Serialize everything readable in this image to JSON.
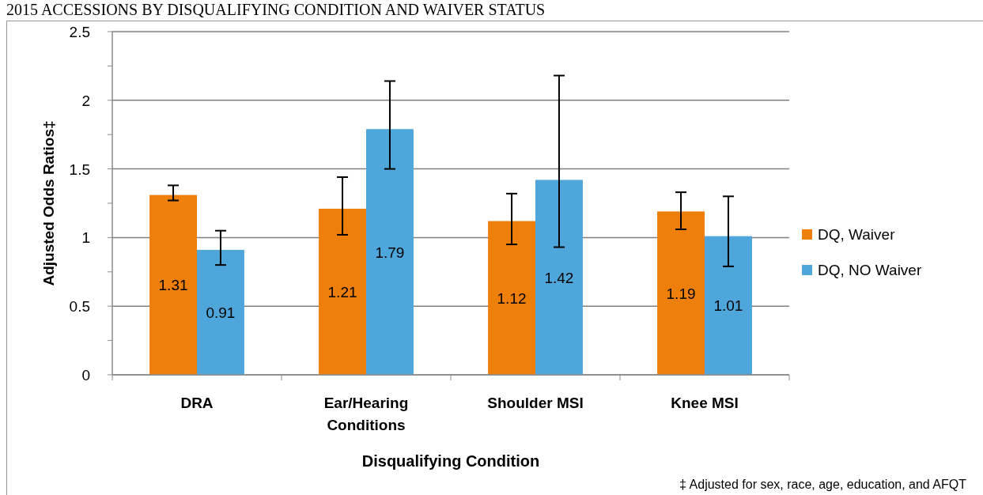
{
  "chart_data": {
    "type": "bar",
    "title": "2015 ACCESSIONS BY DISQUALIFYING CONDITION AND WAIVER STATUS",
    "xlabel": "Disqualifying Condition",
    "ylabel": "Adjusted Odds Ratios‡",
    "categories": [
      "DRA",
      "Ear/Hearing Conditions",
      "Shoulder MSI",
      "Knee MSI"
    ],
    "series": [
      {
        "name": "DQ, Waiver",
        "color": "#ee7f0b",
        "values": [
          1.31,
          1.21,
          1.12,
          1.19
        ],
        "errors": [
          [
            1.27,
            1.38
          ],
          [
            1.02,
            1.44
          ],
          [
            0.95,
            1.32
          ],
          [
            1.06,
            1.33
          ]
        ]
      },
      {
        "name": "DQ, NO Waiver",
        "color": "#4ea6da",
        "values": [
          0.91,
          1.79,
          1.42,
          1.01
        ],
        "errors": [
          [
            0.8,
            1.05
          ],
          [
            1.5,
            2.14
          ],
          [
            0.93,
            2.18
          ],
          [
            0.79,
            1.3
          ]
        ]
      }
    ],
    "ylim": [
      0,
      2.5
    ],
    "yticks": [
      0,
      0.5,
      1,
      1.5,
      2,
      2.5
    ],
    "grid": "y",
    "legend": "right",
    "data_labels": true,
    "annotations": [
      "‡ Adjusted for sex, race, age, education, and AFQT"
    ]
  }
}
